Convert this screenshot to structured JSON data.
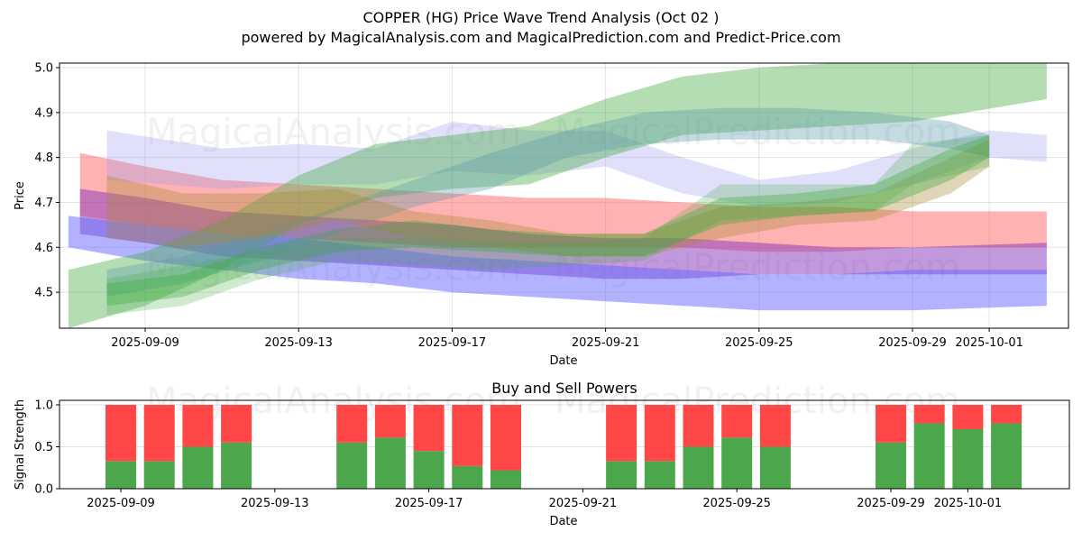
{
  "header": {
    "title": "COPPER (HG) Price Wave Trend Analysis (Oct 02 )",
    "subtitle": "powered by MagicalAnalysis.com and MagicalPrediction.com and Predict-Price.com"
  },
  "watermarks": [
    "MagicalAnalysis.com",
    "MagicalPrediction.com"
  ],
  "chart_data": [
    {
      "type": "area",
      "title": "COPPER (HG) Price Wave Trend Analysis (Oct 02 )",
      "xlabel": "Date",
      "ylabel": "Price",
      "x_type": "date",
      "xlim": [
        "2025-09-06.8",
        "2025-10-03.1"
      ],
      "ylim": [
        4.42,
        5.01
      ],
      "yticks": [
        4.5,
        4.6,
        4.7,
        4.8,
        4.9,
        5.0
      ],
      "ytick_labels": [
        "4.5",
        "4.6",
        "4.7",
        "4.8",
        "4.9",
        "5.0"
      ],
      "xticks": [
        "2025-09-09",
        "2025-09-13",
        "2025-09-17",
        "2025-09-21",
        "2025-09-25",
        "2025-09-29",
        "2025-10-01"
      ],
      "grid": true,
      "note": "x values are day offsets from 2025-09-09; each band is [day, low, high]",
      "bands": [
        {
          "name": "red-band",
          "color": "#ff6666",
          "opacity": 0.5,
          "points": [
            [
              -1.7,
              4.67,
              4.81
            ],
            [
              0,
              4.65,
              4.78
            ],
            [
              2,
              4.63,
              4.75
            ],
            [
              4,
              4.62,
              4.74
            ],
            [
              6,
              4.61,
              4.73
            ],
            [
              8,
              4.6,
              4.72
            ],
            [
              10,
              4.6,
              4.71
            ],
            [
              12,
              4.6,
              4.71
            ],
            [
              14,
              4.6,
              4.7
            ],
            [
              16,
              4.59,
              4.69
            ],
            [
              18,
              4.59,
              4.69
            ],
            [
              20,
              4.6,
              4.68
            ],
            [
              23.5,
              4.6,
              4.68
            ]
          ]
        },
        {
          "name": "purple-band",
          "color": "#8833bb",
          "opacity": 0.5,
          "points": [
            [
              -1.7,
              4.63,
              4.73
            ],
            [
              0,
              4.61,
              4.71
            ],
            [
              2,
              4.58,
              4.68
            ],
            [
              4,
              4.57,
              4.67
            ],
            [
              6,
              4.56,
              4.66
            ],
            [
              8,
              4.55,
              4.65
            ],
            [
              10,
              4.54,
              4.63
            ],
            [
              12,
              4.53,
              4.62
            ],
            [
              14,
              4.53,
              4.62
            ],
            [
              16,
              4.54,
              4.61
            ],
            [
              18,
              4.54,
              4.6
            ],
            [
              20,
              4.54,
              4.6
            ],
            [
              23.5,
              4.54,
              4.61
            ]
          ]
        },
        {
          "name": "blue-band",
          "color": "#6666ff",
          "opacity": 0.5,
          "points": [
            [
              -2,
              4.6,
              4.67
            ],
            [
              0,
              4.57,
              4.65
            ],
            [
              2,
              4.55,
              4.63
            ],
            [
              4,
              4.53,
              4.62
            ],
            [
              6,
              4.52,
              4.6
            ],
            [
              8,
              4.5,
              4.58
            ],
            [
              10,
              4.49,
              4.57
            ],
            [
              12,
              4.48,
              4.56
            ],
            [
              14,
              4.47,
              4.55
            ],
            [
              16,
              4.46,
              4.54
            ],
            [
              18,
              4.46,
              4.54
            ],
            [
              20,
              4.46,
              4.55
            ],
            [
              23.5,
              4.47,
              4.55
            ]
          ]
        },
        {
          "name": "light-blue-band-upper",
          "color": "#9999ee",
          "opacity": 0.3,
          "points": [
            [
              -1,
              4.75,
              4.86
            ],
            [
              0.5,
              4.74,
              4.84
            ],
            [
              2,
              4.73,
              4.82
            ],
            [
              4,
              4.74,
              4.83
            ],
            [
              6,
              4.74,
              4.82
            ],
            [
              8,
              4.77,
              4.88
            ],
            [
              10,
              4.76,
              4.86
            ],
            [
              12,
              4.78,
              4.86
            ],
            [
              14,
              4.72,
              4.8
            ],
            [
              16,
              4.69,
              4.75
            ],
            [
              18,
              4.7,
              4.77
            ],
            [
              20,
              4.74,
              4.82
            ],
            [
              22,
              4.8,
              4.86
            ],
            [
              23.5,
              4.79,
              4.85
            ]
          ]
        },
        {
          "name": "green-band-wide",
          "color": "#44aa44",
          "opacity": 0.4,
          "points": [
            [
              -2,
              4.42,
              4.55
            ],
            [
              0,
              4.47,
              4.59
            ],
            [
              2,
              4.55,
              4.66
            ],
            [
              4,
              4.65,
              4.76
            ],
            [
              6,
              4.71,
              4.83
            ],
            [
              8,
              4.73,
              4.85
            ],
            [
              10,
              4.74,
              4.87
            ],
            [
              12,
              4.8,
              4.93
            ],
            [
              14,
              4.85,
              4.98
            ],
            [
              16,
              4.86,
              5.0
            ],
            [
              18,
              4.87,
              5.01
            ],
            [
              20,
              4.88,
              5.01
            ],
            [
              23.5,
              4.93,
              5.01
            ]
          ]
        },
        {
          "name": "teal-band",
          "color": "#5599aa",
          "opacity": 0.35,
          "points": [
            [
              -1,
              4.49,
              4.55
            ],
            [
              1,
              4.52,
              4.58
            ],
            [
              3,
              4.57,
              4.63
            ],
            [
              5,
              4.63,
              4.69
            ],
            [
              7,
              4.69,
              4.75
            ],
            [
              9,
              4.73,
              4.81
            ],
            [
              11,
              4.8,
              4.86
            ],
            [
              13,
              4.83,
              4.9
            ],
            [
              15,
              4.84,
              4.91
            ],
            [
              17,
              4.84,
              4.91
            ],
            [
              19,
              4.84,
              4.9
            ],
            [
              21,
              4.82,
              4.88
            ],
            [
              22,
              4.8,
              4.85
            ]
          ]
        },
        {
          "name": "brown-band",
          "color": "#aa8833",
          "opacity": 0.35,
          "points": [
            [
              -1,
              4.62,
              4.76
            ],
            [
              1,
              4.6,
              4.72
            ],
            [
              3,
              4.62,
              4.72
            ],
            [
              5,
              4.66,
              4.73
            ],
            [
              7,
              4.62,
              4.68
            ],
            [
              9,
              4.6,
              4.66
            ],
            [
              11,
              4.58,
              4.63
            ],
            [
              13,
              4.58,
              4.63
            ],
            [
              15,
              4.62,
              4.69
            ],
            [
              17,
              4.65,
              4.7
            ],
            [
              19,
              4.66,
              4.72
            ],
            [
              21,
              4.72,
              4.8
            ],
            [
              22,
              4.78,
              4.84
            ]
          ]
        },
        {
          "name": "green-band-narrow",
          "color": "#33aa33",
          "opacity": 0.35,
          "points": [
            [
              -1,
              4.47,
              4.52
            ],
            [
              1,
              4.49,
              4.54
            ],
            [
              3,
              4.55,
              4.6
            ],
            [
              5,
              4.59,
              4.64
            ],
            [
              7,
              4.6,
              4.66
            ],
            [
              9,
              4.59,
              4.64
            ],
            [
              11,
              4.58,
              4.63
            ],
            [
              13,
              4.58,
              4.63
            ],
            [
              15,
              4.65,
              4.71
            ],
            [
              17,
              4.67,
              4.72
            ],
            [
              19,
              4.68,
              4.74
            ],
            [
              21,
              4.75,
              4.82
            ],
            [
              22,
              4.8,
              4.85
            ]
          ]
        },
        {
          "name": "green-band-lower",
          "color": "#44aa44",
          "opacity": 0.25,
          "points": [
            [
              -1,
              4.45,
              4.53
            ],
            [
              1,
              4.47,
              4.56
            ],
            [
              3,
              4.53,
              4.59
            ],
            [
              5,
              4.57,
              4.62
            ],
            [
              7,
              4.56,
              4.62
            ],
            [
              9,
              4.55,
              4.61
            ],
            [
              11,
              4.56,
              4.61
            ],
            [
              13,
              4.57,
              4.62
            ],
            [
              15,
              4.66,
              4.74
            ],
            [
              17,
              4.67,
              4.74
            ],
            [
              19,
              4.68,
              4.74
            ],
            [
              20,
              4.74,
              4.83
            ],
            [
              22,
              4.78,
              4.85
            ]
          ]
        }
      ]
    },
    {
      "type": "bar",
      "title": "Buy and Sell Powers",
      "xlabel": "Date",
      "ylabel": "Signal Strength",
      "ylim": [
        0,
        1.05
      ],
      "yticks": [
        0.0,
        0.5,
        1.0
      ],
      "ytick_labels": [
        "0.0",
        "0.5",
        "1.0"
      ],
      "xticks": [
        "2025-09-09",
        "2025-09-13",
        "2025-09-17",
        "2025-09-21",
        "2025-09-25",
        "2025-09-29",
        "2025-10-01"
      ],
      "grid": true,
      "categories": [
        "2025-09-09",
        "2025-09-10",
        "2025-09-11",
        "2025-09-12",
        "2025-09-15",
        "2025-09-16",
        "2025-09-17",
        "2025-09-18",
        "2025-09-19",
        "2025-09-22",
        "2025-09-23",
        "2025-09-24",
        "2025-09-25",
        "2025-09-26",
        "2025-09-29",
        "2025-09-30",
        "2025-10-01",
        "2025-10-02"
      ],
      "series": [
        {
          "name": "Buy",
          "color": "#4ca64c",
          "values": [
            0.33,
            0.33,
            0.5,
            0.55,
            0.55,
            0.61,
            0.45,
            0.27,
            0.22,
            0.33,
            0.33,
            0.5,
            0.61,
            0.5,
            0.55,
            0.78,
            0.71,
            0.78
          ]
        },
        {
          "name": "Sell",
          "color": "#ff4747",
          "values": [
            0.67,
            0.67,
            0.5,
            0.45,
            0.45,
            0.39,
            0.55,
            0.73,
            0.78,
            0.67,
            0.67,
            0.5,
            0.39,
            0.5,
            0.45,
            0.22,
            0.29,
            0.22
          ]
        }
      ]
    }
  ]
}
